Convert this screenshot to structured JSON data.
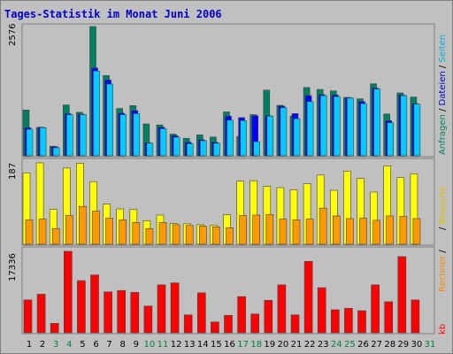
{
  "title": "Tages-Statistik im Monat Juni 2006",
  "colors": {
    "background": "#c0c0c0",
    "panel_bg": "#c0c0c0",
    "anfragen": "#008060",
    "dateien": "#0000ff",
    "seiten": "#00ccff",
    "besuche": "#ffff00",
    "rechner": "#ff9900",
    "kb": "#ff0000",
    "weekday_label": "#000000",
    "weekend_label": "#008040"
  },
  "right_labels": {
    "top": [
      {
        "text": "Anfragen",
        "color": "#008060"
      },
      {
        "text": " / ",
        "color": "#000000"
      },
      {
        "text": "Dateien",
        "color": "#0000cc"
      },
      {
        "text": " / ",
        "color": "#000000"
      },
      {
        "text": "Seiten",
        "color": "#00b0e0"
      }
    ],
    "middle": [
      {
        "text": " / ",
        "color": "#000000"
      },
      {
        "text": "Besuche",
        "color": "#e0c000"
      }
    ],
    "middle2": [
      {
        "text": "Rechner",
        "color": "#ff8800"
      },
      {
        "text": " / ",
        "color": "#000000"
      }
    ],
    "bottom": [
      {
        "text": "kb",
        "color": "#ff0000"
      }
    ]
  },
  "days": [
    "1",
    "2",
    "3",
    "4",
    "5",
    "6",
    "7",
    "8",
    "9",
    "10",
    "11",
    "12",
    "13",
    "14",
    "15",
    "16",
    "17",
    "18",
    "19",
    "20",
    "21",
    "22",
    "23",
    "24",
    "25",
    "26",
    "27",
    "28",
    "29",
    "30",
    "31"
  ],
  "weekend_days": [
    "3",
    "4",
    "10",
    "11",
    "17",
    "18",
    "24",
    "25",
    "31"
  ],
  "chart_data": [
    {
      "type": "bar",
      "panel": "top",
      "ymax_label": "2576",
      "ylim": [
        0,
        2576
      ],
      "categories": [
        "1",
        "2",
        "3",
        "4",
        "5",
        "6",
        "7",
        "8",
        "9",
        "10",
        "11",
        "12",
        "13",
        "14",
        "15",
        "16",
        "17",
        "18",
        "19",
        "20",
        "21",
        "22",
        "23",
        "24",
        "25",
        "26",
        "27",
        "28",
        "29",
        "30",
        "31"
      ],
      "series": [
        {
          "name": "Anfragen",
          "values": [
            913,
            564,
            191,
            1012,
            866,
            2576,
            1598,
            942,
            1000,
            636,
            614,
            432,
            347,
            416,
            374,
            876,
            386,
            820,
            1310,
            1006,
            788,
            1360,
            1322,
            1294,
            1164,
            1135,
            1435,
            832,
            1253,
            1169,
            0
          ]
        },
        {
          "name": "Dateien",
          "values": [
            560,
            570,
            180,
            840,
            830,
            1750,
            1510,
            850,
            900,
            260,
            570,
            400,
            270,
            320,
            270,
            790,
            760,
            800,
            800,
            990,
            840,
            1200,
            1220,
            1210,
            1160,
            1080,
            1350,
            700,
            1210,
            1040,
            0
          ]
        },
        {
          "name": "Seiten",
          "values": [
            530,
            560,
            160,
            820,
            820,
            1690,
            1430,
            820,
            840,
            250,
            540,
            370,
            240,
            300,
            250,
            710,
            700,
            280,
            790,
            960,
            740,
            1080,
            1200,
            1180,
            1150,
            1040,
            1330,
            660,
            1200,
            1030,
            0
          ]
        }
      ]
    },
    {
      "type": "bar",
      "panel": "middle",
      "ymax_label": "187",
      "ylim": [
        0,
        187
      ],
      "categories": [
        "1",
        "2",
        "3",
        "4",
        "5",
        "6",
        "7",
        "8",
        "9",
        "10",
        "11",
        "12",
        "13",
        "14",
        "15",
        "16",
        "17",
        "18",
        "19",
        "20",
        "21",
        "22",
        "23",
        "24",
        "25",
        "26",
        "27",
        "28",
        "29",
        "30",
        "31"
      ],
      "series": [
        {
          "name": "Besuche",
          "values": [
            164,
            187,
            80,
            175,
            186,
            144,
            92,
            81,
            80,
            54,
            67,
            48,
            47,
            45,
            43,
            68,
            145,
            146,
            133,
            130,
            125,
            139,
            159,
            124,
            168,
            151,
            120,
            180,
            153,
            162,
            0
          ]
        },
        {
          "name": "Rechner",
          "values": [
            56,
            58,
            36,
            66,
            87,
            76,
            60,
            56,
            50,
            36,
            50,
            45,
            43,
            42,
            40,
            38,
            66,
            67,
            68,
            58,
            56,
            58,
            83,
            65,
            59,
            60,
            55,
            65,
            64,
            59,
            0
          ]
        }
      ]
    },
    {
      "type": "bar",
      "panel": "bottom",
      "ymax_label": "17336",
      "ylim": [
        0,
        17336
      ],
      "categories": [
        "1",
        "2",
        "3",
        "4",
        "5",
        "6",
        "7",
        "8",
        "9",
        "10",
        "11",
        "12",
        "13",
        "14",
        "15",
        "16",
        "17",
        "18",
        "19",
        "20",
        "21",
        "22",
        "23",
        "24",
        "25",
        "26",
        "27",
        "28",
        "29",
        "30",
        "31"
      ],
      "series": [
        {
          "name": "kb",
          "values": [
            7000,
            8200,
            2000,
            17336,
            11100,
            12300,
            8700,
            9000,
            8600,
            5700,
            10200,
            10600,
            3800,
            8500,
            2300,
            3700,
            7700,
            4000,
            6900,
            10200,
            3800,
            15200,
            9600,
            4900,
            5200,
            4700,
            10200,
            6600,
            16200,
            7000,
            0
          ]
        }
      ]
    }
  ]
}
